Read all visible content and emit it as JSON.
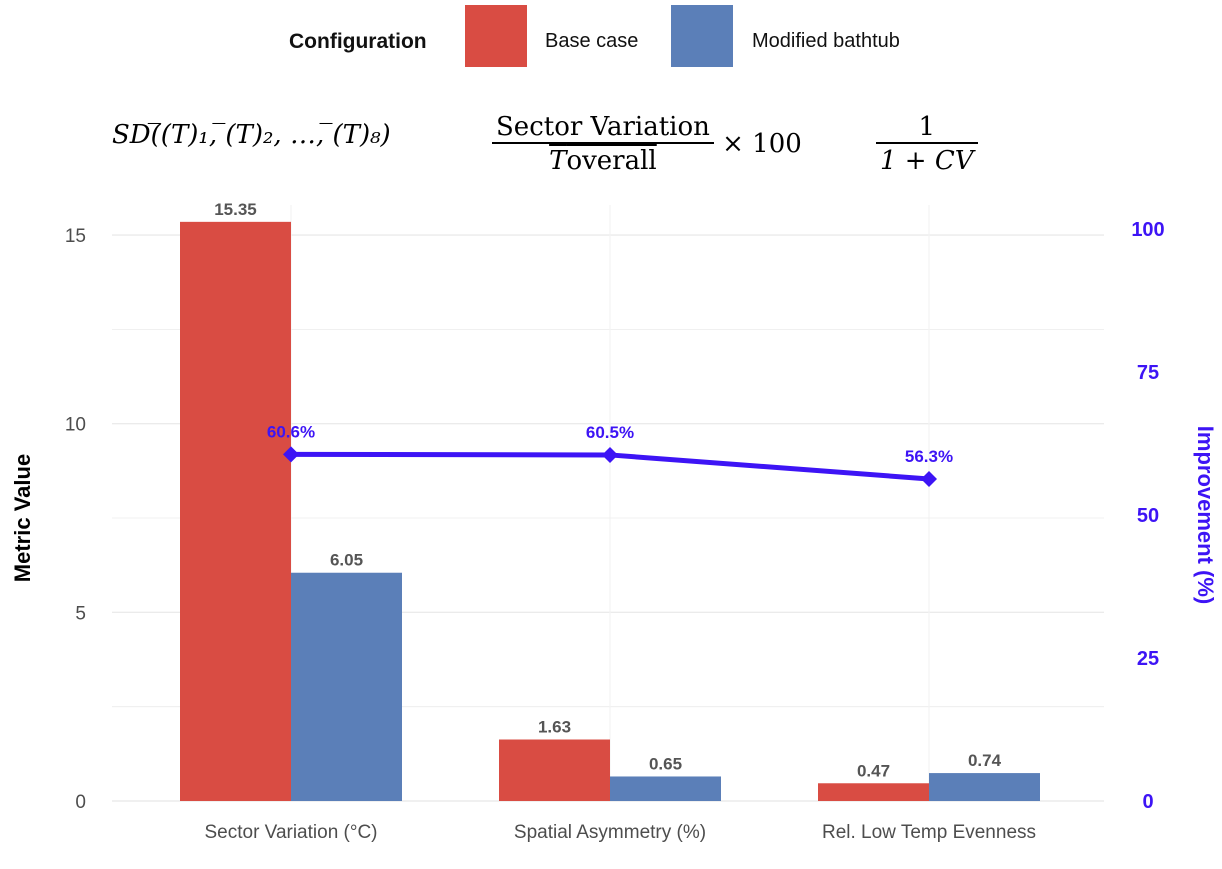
{
  "legend": {
    "title": "Configuration",
    "items": [
      {
        "label": "Base case",
        "color": "#d94c43"
      },
      {
        "label": "Modified bathtub",
        "color": "#5b7fb8"
      }
    ]
  },
  "formulas": {
    "f1": "SD(̅(T)₁, ̅(T)₂, …, ̅(T)₈)",
    "f2_numerator": "Sector Variation",
    "f2_denominator_symbol": "T",
    "f2_denominator_sub": "overall",
    "f2_suffix": "× 100",
    "f3_numerator": "1",
    "f3_denominator": "1 + CV"
  },
  "chart_data": {
    "type": "bar",
    "categories": [
      "Sector Variation (°C)",
      "Spatial Asymmetry (%)",
      "Rel. Low Temp Evenness"
    ],
    "series": [
      {
        "name": "Base case",
        "values": [
          15.35,
          1.63,
          0.47
        ],
        "labels": [
          "15.35",
          "1.63",
          "0.47"
        ],
        "color": "#d94c43"
      },
      {
        "name": "Modified bathtub",
        "values": [
          6.05,
          0.65,
          0.74
        ],
        "labels": [
          "6.05",
          "0.65",
          "0.74"
        ],
        "color": "#5b7fb8"
      }
    ],
    "improvement": {
      "values": [
        60.6,
        60.5,
        56.3
      ],
      "labels": [
        "60.6%",
        "60.5%",
        "56.3%"
      ],
      "color": "#3d14f5"
    },
    "ylabel": "Metric Value",
    "ylim": [
      0,
      16.3
    ],
    "yticks": [
      "0",
      "5",
      "10",
      "15"
    ],
    "ylabel_right": "Improvement (%)",
    "ylim_right": [
      0,
      100
    ],
    "yticks_right": [
      "0",
      "25",
      "50",
      "75",
      "100"
    ],
    "grid": true,
    "legend_position": "top"
  }
}
